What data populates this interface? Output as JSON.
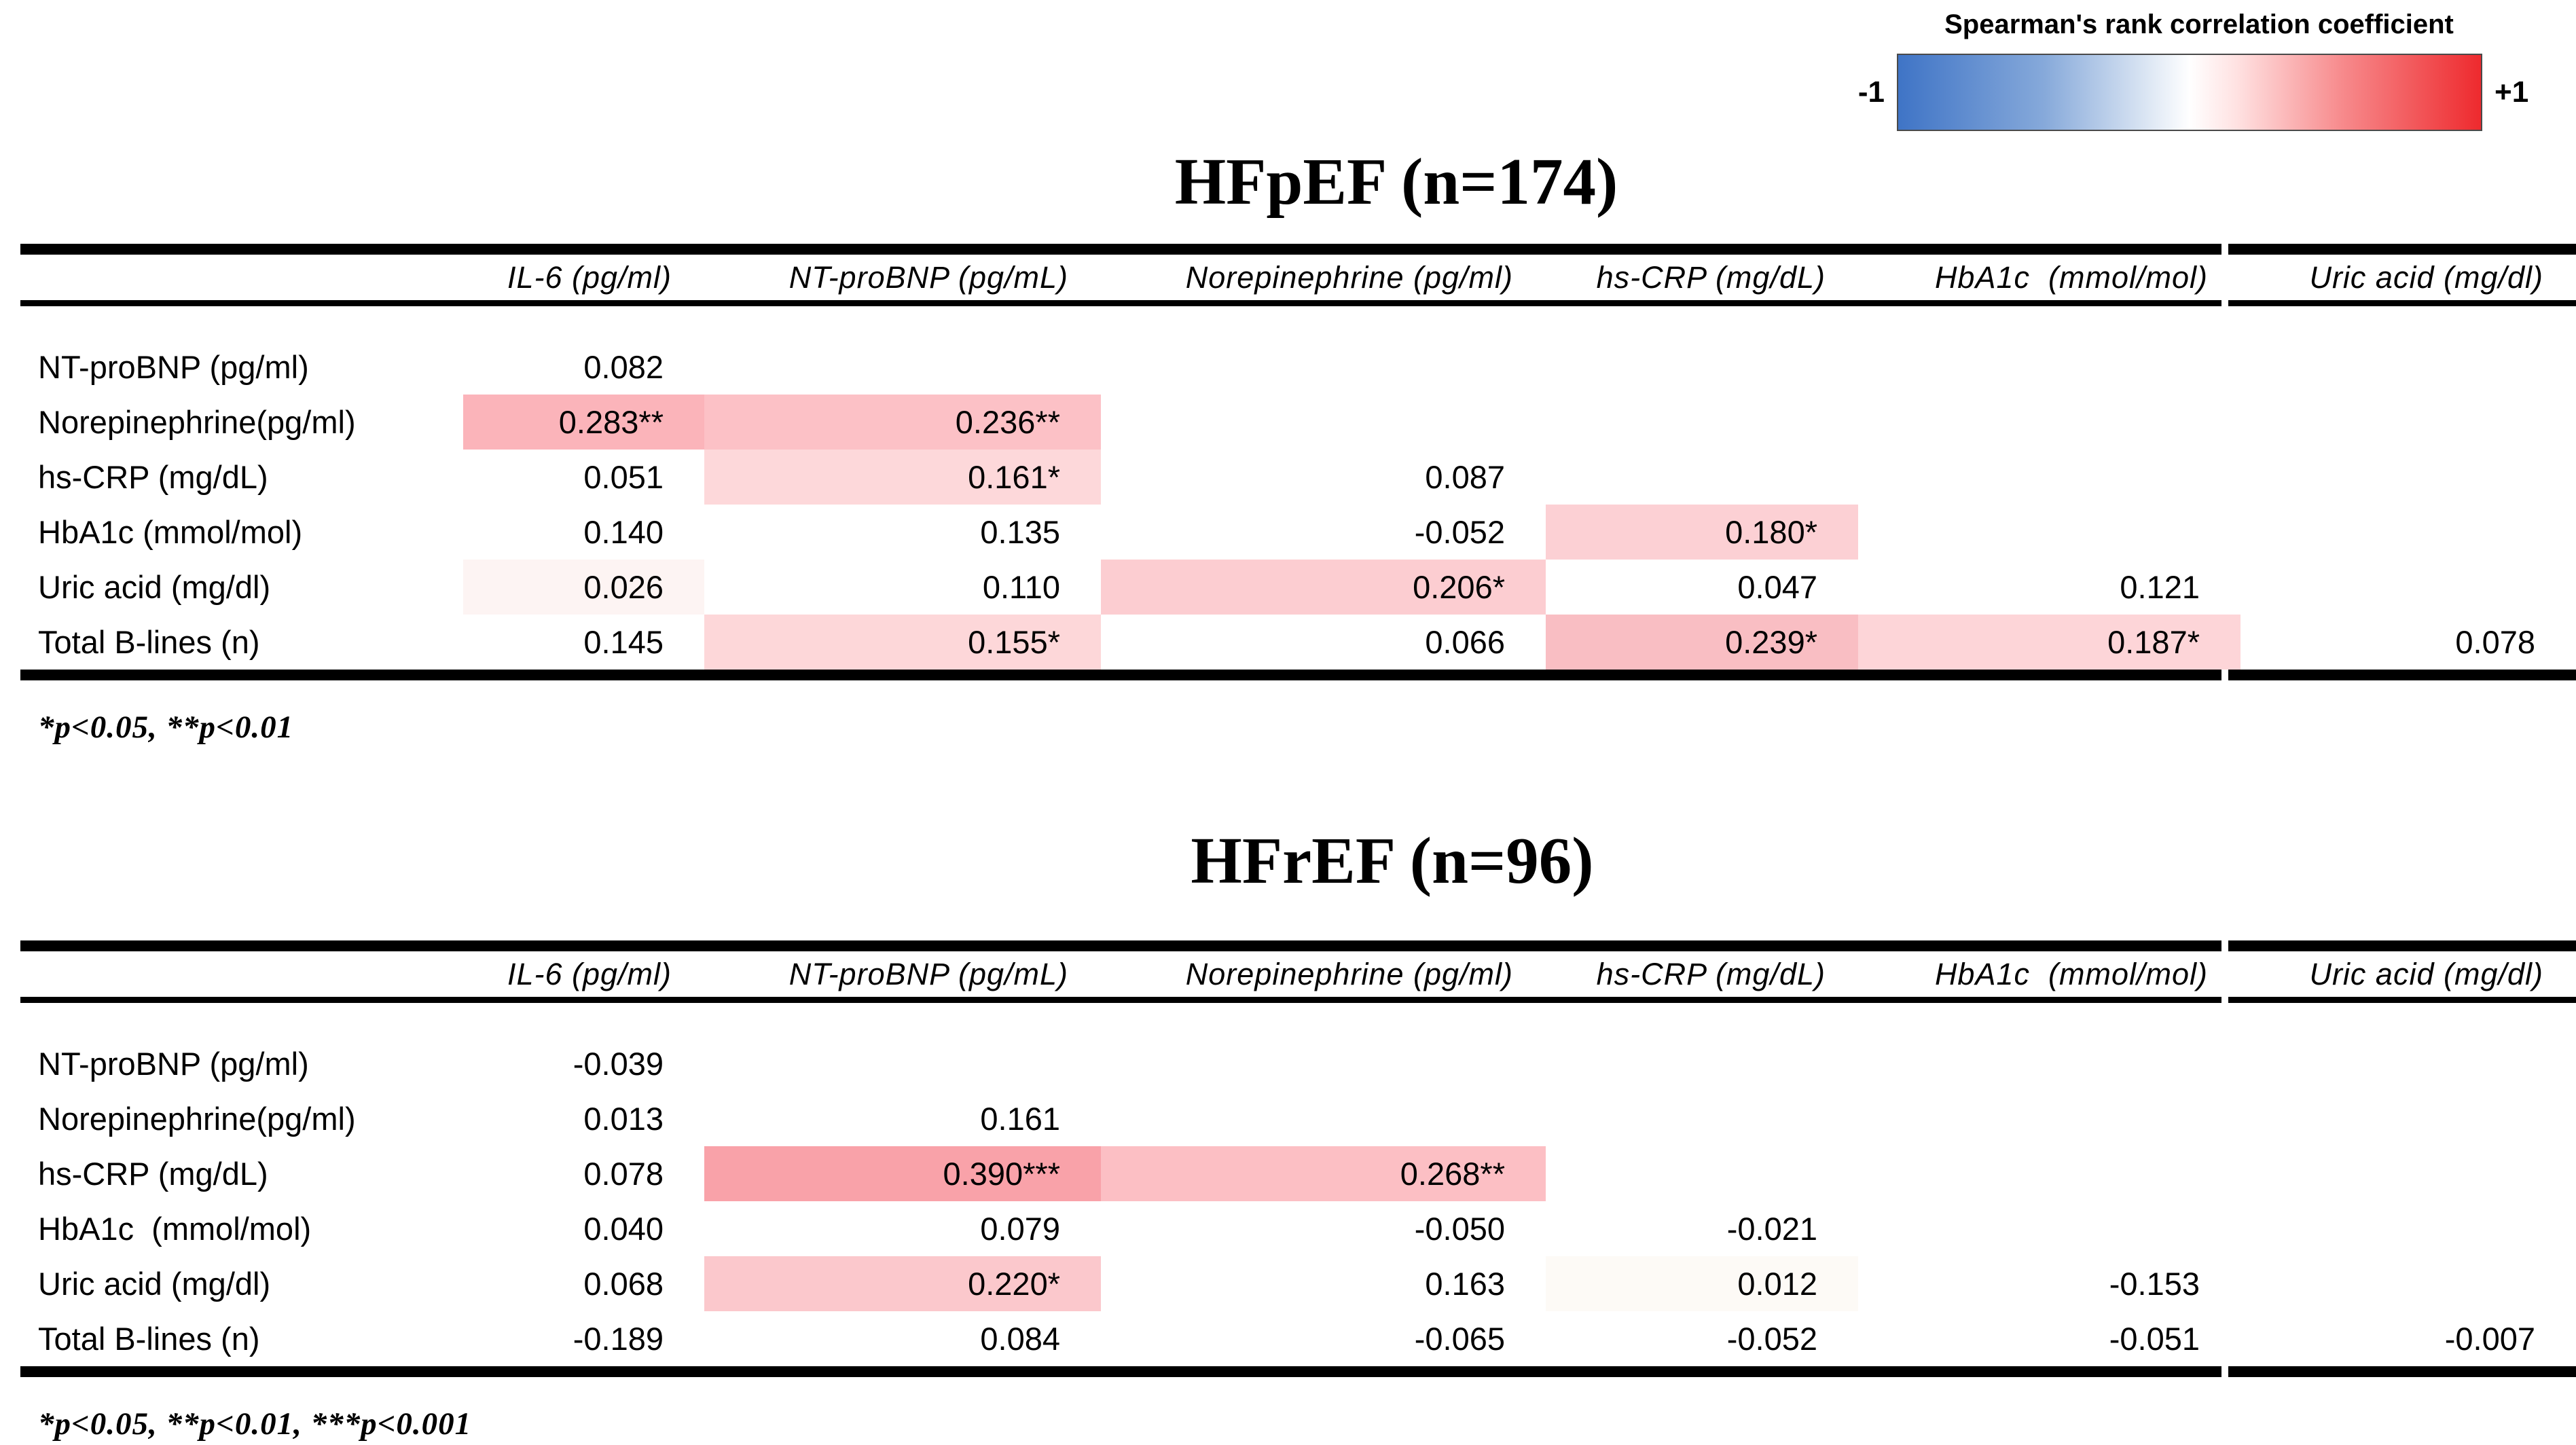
{
  "legend": {
    "title": "Spearman's rank correlation coefficient",
    "min_label": "-1",
    "max_label": "+1",
    "min_color": "#3f74c6",
    "mid_color": "#ffffff",
    "max_color": "#ee2a2e",
    "gradient_stops": [
      "#3f74c6 0%",
      "#86a9da 25%",
      "#dde7f4 43%",
      "#ffffff 50%",
      "#ffe2e2 58%",
      "#f78b8d 76%",
      "#ee2a2e 100%"
    ]
  },
  "chart_data": [
    {
      "type": "heatmap",
      "title": "HFpEF (n=174)",
      "colorbar_label": "Spearman's rank correlation coefficient",
      "colorbar_range": [
        -1,
        1
      ],
      "columns": [
        "IL-6 (pg/ml)",
        "NT-proBNP (pg/mL)",
        "Norepinephrine (pg/ml)",
        "hs-CRP (mg/dL)",
        "HbA1c  (mmol/mol)",
        "Uric acid (mg/dl)"
      ],
      "rows": [
        {
          "label": "NT-proBNP (pg/ml)",
          "cells": [
            {
              "text": "0.082",
              "value": 0.082,
              "bg": null
            },
            null,
            null,
            null,
            null,
            null
          ]
        },
        {
          "label": "Norepinephrine(pg/ml)",
          "cells": [
            {
              "text": "0.283**",
              "value": 0.283,
              "bg": "#fbb4ba"
            },
            {
              "text": "0.236**",
              "value": 0.236,
              "bg": "#fcc1c6"
            },
            null,
            null,
            null,
            null
          ]
        },
        {
          "label": "hs-CRP (mg/dL)",
          "cells": [
            {
              "text": "0.051",
              "value": 0.051,
              "bg": null
            },
            {
              "text": "0.161*",
              "value": 0.161,
              "bg": "#fdd8da"
            },
            {
              "text": "0.087",
              "value": 0.087,
              "bg": null
            },
            null,
            null,
            null
          ]
        },
        {
          "label": "HbA1c (mmol/mol)",
          "cells": [
            {
              "text": "0.140",
              "value": 0.14,
              "bg": null
            },
            {
              "text": "0.135",
              "value": 0.135,
              "bg": null
            },
            {
              "text": "-0.052",
              "value": -0.052,
              "bg": null
            },
            {
              "text": "0.180*",
              "value": 0.18,
              "bg": "#fcd0d4"
            },
            null,
            null
          ]
        },
        {
          "label": "Uric acid (mg/dl)",
          "cells": [
            {
              "text": "0.026",
              "value": 0.026,
              "bg": "#fdf4f3"
            },
            {
              "text": "0.110",
              "value": 0.11,
              "bg": null
            },
            {
              "text": "0.206*",
              "value": 0.206,
              "bg": "#fccdd1"
            },
            {
              "text": "0.047",
              "value": 0.047,
              "bg": null
            },
            {
              "text": "0.121",
              "value": 0.121,
              "bg": null
            },
            null
          ]
        },
        {
          "label": "Total B-lines (n)",
          "cells": [
            {
              "text": "0.145",
              "value": 0.145,
              "bg": null
            },
            {
              "text": "0.155*",
              "value": 0.155,
              "bg": "#fdd7d9"
            },
            {
              "text": "0.066",
              "value": 0.066,
              "bg": null
            },
            {
              "text": "0.239*",
              "value": 0.239,
              "bg": "#f9bec3"
            },
            {
              "text": "0.187*",
              "value": 0.187,
              "bg": "#fdd5d8"
            },
            {
              "text": "0.078",
              "value": 0.078,
              "bg": null
            }
          ]
        }
      ],
      "footnote": "*p<0.05, **p<0.01"
    },
    {
      "type": "heatmap",
      "title": "HFrEF (n=96)",
      "colorbar_label": "Spearman's rank correlation coefficient",
      "colorbar_range": [
        -1,
        1
      ],
      "columns": [
        "IL-6 (pg/ml)",
        "NT-proBNP (pg/mL)",
        "Norepinephrine (pg/ml)",
        "hs-CRP (mg/dL)",
        "HbA1c  (mmol/mol)",
        "Uric acid (mg/dl)"
      ],
      "rows": [
        {
          "label": "NT-proBNP (pg/ml)",
          "cells": [
            {
              "text": "-0.039",
              "value": -0.039,
              "bg": null
            },
            null,
            null,
            null,
            null,
            null
          ]
        },
        {
          "label": "Norepinephrine(pg/ml)",
          "cells": [
            {
              "text": "0.013",
              "value": 0.013,
              "bg": null
            },
            {
              "text": "0.161",
              "value": 0.161,
              "bg": null
            },
            null,
            null,
            null,
            null
          ]
        },
        {
          "label": "hs-CRP (mg/dL)",
          "cells": [
            {
              "text": "0.078",
              "value": 0.078,
              "bg": null
            },
            {
              "text": "0.390***",
              "value": 0.39,
              "bg": "#f9a2a9"
            },
            {
              "text": "0.268**",
              "value": 0.268,
              "bg": "#fcbfc4"
            },
            null,
            null,
            null
          ]
        },
        {
          "label": "HbA1c  (mmol/mol)",
          "cells": [
            {
              "text": "0.040",
              "value": 0.04,
              "bg": null
            },
            {
              "text": "0.079",
              "value": 0.079,
              "bg": null
            },
            {
              "text": "-0.050",
              "value": -0.05,
              "bg": null
            },
            {
              "text": "-0.021",
              "value": -0.021,
              "bg": null
            },
            null,
            null
          ]
        },
        {
          "label": "Uric acid (mg/dl)",
          "cells": [
            {
              "text": "0.068",
              "value": 0.068,
              "bg": null
            },
            {
              "text": "0.220*",
              "value": 0.22,
              "bg": "#fbc8cc"
            },
            {
              "text": "0.163",
              "value": 0.163,
              "bg": null
            },
            {
              "text": "0.012",
              "value": 0.012,
              "bg": "#fdfaf6"
            },
            {
              "text": "-0.153",
              "value": -0.153,
              "bg": null
            },
            null
          ]
        },
        {
          "label": "Total B-lines (n)",
          "cells": [
            {
              "text": "-0.189",
              "value": -0.189,
              "bg": null
            },
            {
              "text": "0.084",
              "value": 0.084,
              "bg": null
            },
            {
              "text": "-0.065",
              "value": -0.065,
              "bg": null
            },
            {
              "text": "-0.052",
              "value": -0.052,
              "bg": null
            },
            {
              "text": "-0.051",
              "value": -0.051,
              "bg": null
            },
            {
              "text": "-0.007",
              "value": -0.007,
              "bg": null
            }
          ]
        }
      ],
      "footnote": "*p<0.05, **p<0.01, ***p<0.001"
    }
  ]
}
